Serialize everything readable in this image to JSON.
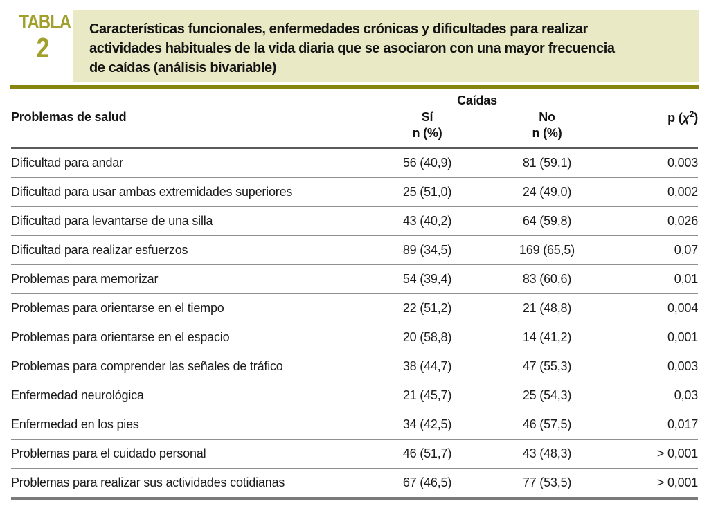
{
  "table_label": {
    "word": "TABLA",
    "number": "2"
  },
  "title_lines": [
    "Características funcionales, enfermedades crónicas y dificultades para realizar",
    "actividades habituales de la vida diaria que se asociaron con una mayor frecuencia",
    "de caídas (análisis bivariable)"
  ],
  "colors": {
    "accent_olive": "#a2a02c",
    "title_box_bg": "#e9e9c6",
    "rule_olive": "#85850f"
  },
  "table": {
    "group_header": "Caídas",
    "col_headers": {
      "label": "Problemas de salud",
      "yes": "Sí",
      "no": "No",
      "n_pct": "n (%)",
      "p_prefix": "p (",
      "p_chi": "χ",
      "p_sup": "2",
      "p_suffix": ")"
    },
    "rows": [
      {
        "label": "Dificultad para andar",
        "si": "56 (40,9)",
        "no": "81 (59,1)",
        "p": "0,003"
      },
      {
        "label": "Dificultad para usar ambas extremidades superiores",
        "si": "25 (51,0)",
        "no": "24 (49,0)",
        "p": "0,002"
      },
      {
        "label": "Dificultad para levantarse de una silla",
        "si": "43 (40,2)",
        "no": "64 (59,8)",
        "p": "0,026"
      },
      {
        "label": "Dificultad para realizar esfuerzos",
        "si": "89 (34,5)",
        "no": "169 (65,5)",
        "p": "0,07"
      },
      {
        "label": "Problemas para memorizar",
        "si": "54 (39,4)",
        "no": "83 (60,6)",
        "p": "0,01"
      },
      {
        "label": "Problemas para orientarse en el tiempo",
        "si": "22 (51,2)",
        "no": "21 (48,8)",
        "p": "0,004"
      },
      {
        "label": "Problemas para orientarse en el espacio",
        "si": "20 (58,8)",
        "no": "14 (41,2)",
        "p": "0,001"
      },
      {
        "label": "Problemas para comprender las señales de tráfico",
        "si": "38 (44,7)",
        "no": "47 (55,3)",
        "p": "0,003"
      },
      {
        "label": "Enfermedad neurológica",
        "si": "21 (45,7)",
        "no": "25 (54,3)",
        "p": "0,03"
      },
      {
        "label": "Enfermedad en los pies",
        "si": "34 (42,5)",
        "no": "46 (57,5)",
        "p": "0,017"
      },
      {
        "label": "Problemas para el cuidado personal",
        "si": "46 (51,7)",
        "no": "43 (48,3)",
        "p": "> 0,001"
      },
      {
        "label": "Problemas para realizar sus actividades cotidianas",
        "si": "67 (46,5)",
        "no": "77 (53,5)",
        "p": "> 0,001"
      }
    ]
  }
}
